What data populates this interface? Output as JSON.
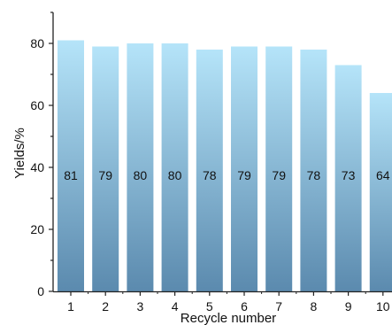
{
  "chart_data": {
    "type": "bar",
    "categories": [
      "1",
      "2",
      "3",
      "4",
      "5",
      "6",
      "7",
      "8",
      "9",
      "10"
    ],
    "values": [
      81,
      79,
      80,
      80,
      78,
      79,
      79,
      78,
      73,
      64
    ],
    "data_labels": [
      "81",
      "79",
      "80",
      "80",
      "78",
      "79",
      "79",
      "78",
      "73",
      "64"
    ],
    "xlabel": "Recycle number",
    "ylabel": "Yields/%",
    "ylim": [
      0,
      90
    ],
    "yticks": [
      0,
      20,
      40,
      60,
      80
    ],
    "grid": false,
    "colors": {
      "bar_top": "#b5e4f9",
      "bar_bottom": "#5b8aae",
      "axis": "#222222"
    }
  }
}
